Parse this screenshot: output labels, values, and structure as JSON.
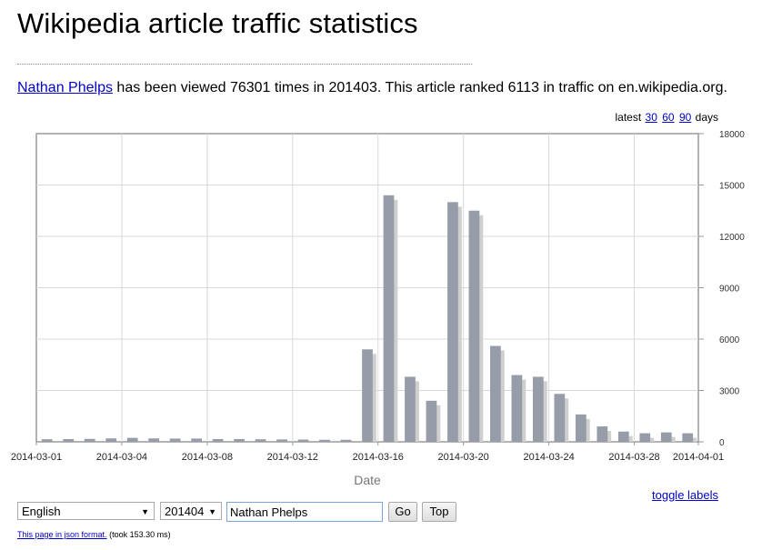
{
  "page": {
    "title": "Wikipedia article traffic statistics"
  },
  "summary": {
    "article_link": "Nathan Phelps",
    "text": "has been viewed 76301 times in 201403. This article ranked 6113 in traffic on en.wikipedia.org."
  },
  "latest": {
    "prefix": "latest",
    "options": [
      "30",
      "60",
      "90"
    ],
    "suffix": "days"
  },
  "chart_data": {
    "type": "bar",
    "xlabel": "Date",
    "ylabel": "",
    "ylim": [
      0,
      18000
    ],
    "yticks": [
      0,
      3000,
      6000,
      9000,
      12000,
      15000,
      18000
    ],
    "y_axis_side": "right",
    "grid": true,
    "legend": "none",
    "xtick_labels": [
      "2014-03-01",
      "2014-03-04",
      "2014-03-08",
      "2014-03-12",
      "2014-03-16",
      "2014-03-20",
      "2014-03-24",
      "2014-03-28",
      "2014-04-01"
    ],
    "xtick_dates": [
      "2014-03-01",
      "2014-03-05",
      "2014-03-09",
      "2014-03-13",
      "2014-03-17",
      "2014-03-21",
      "2014-03-25",
      "2014-03-29",
      "2014-04-01"
    ],
    "categories": [
      "2014-03-01",
      "2014-03-02",
      "2014-03-03",
      "2014-03-04",
      "2014-03-05",
      "2014-03-06",
      "2014-03-07",
      "2014-03-08",
      "2014-03-09",
      "2014-03-10",
      "2014-03-11",
      "2014-03-12",
      "2014-03-13",
      "2014-03-14",
      "2014-03-15",
      "2014-03-16",
      "2014-03-17",
      "2014-03-18",
      "2014-03-19",
      "2014-03-20",
      "2014-03-21",
      "2014-03-22",
      "2014-03-23",
      "2014-03-24",
      "2014-03-25",
      "2014-03-26",
      "2014-03-27",
      "2014-03-28",
      "2014-03-29",
      "2014-03-30",
      "2014-03-31"
    ],
    "values": [
      150,
      160,
      170,
      200,
      230,
      200,
      190,
      190,
      160,
      160,
      150,
      140,
      130,
      120,
      120,
      5400,
      14400,
      3800,
      2400,
      14000,
      13500,
      5600,
      3900,
      3800,
      2800,
      1600,
      900,
      600,
      500,
      550,
      500
    ],
    "bar_color": "#969ca8",
    "shadow_color": "#cfcfcf"
  },
  "controls": {
    "language": "English",
    "month": "201404",
    "article_value": "Nathan Phelps",
    "go_label": "Go",
    "top_label": "Top",
    "toggle_labels": "toggle labels"
  },
  "footer": {
    "json_link": "This page in json format.",
    "timing": "(took 153.30 ms)"
  }
}
